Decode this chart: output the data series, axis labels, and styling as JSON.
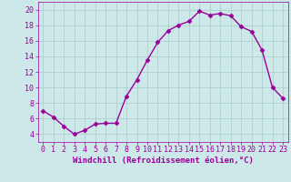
{
  "x": [
    0,
    1,
    2,
    3,
    4,
    5,
    6,
    7,
    8,
    9,
    10,
    11,
    12,
    13,
    14,
    15,
    16,
    17,
    18,
    19,
    20,
    21,
    22,
    23
  ],
  "y": [
    7.0,
    6.2,
    5.0,
    4.0,
    4.5,
    5.3,
    5.4,
    5.4,
    8.9,
    11.0,
    13.5,
    15.8,
    17.3,
    18.0,
    18.5,
    19.8,
    19.3,
    19.5,
    19.2,
    17.8,
    17.2,
    14.8,
    10.0,
    8.6
  ],
  "line_color": "#990099",
  "marker": "D",
  "marker_size": 2.5,
  "line_width": 1,
  "background_color": "#cce8e8",
  "grid_color": "#aacccc",
  "xlabel": "Windchill (Refroidissement éolien,°C)",
  "xlabel_color": "#990099",
  "tick_color": "#990099",
  "ylim": [
    3,
    21
  ],
  "xlim": [
    -0.5,
    23.5
  ],
  "yticks": [
    4,
    6,
    8,
    10,
    12,
    14,
    16,
    18,
    20
  ],
  "xticks": [
    0,
    1,
    2,
    3,
    4,
    5,
    6,
    7,
    8,
    9,
    10,
    11,
    12,
    13,
    14,
    15,
    16,
    17,
    18,
    19,
    20,
    21,
    22,
    23
  ],
  "xlabel_fontsize": 6.5,
  "tick_fontsize": 6
}
